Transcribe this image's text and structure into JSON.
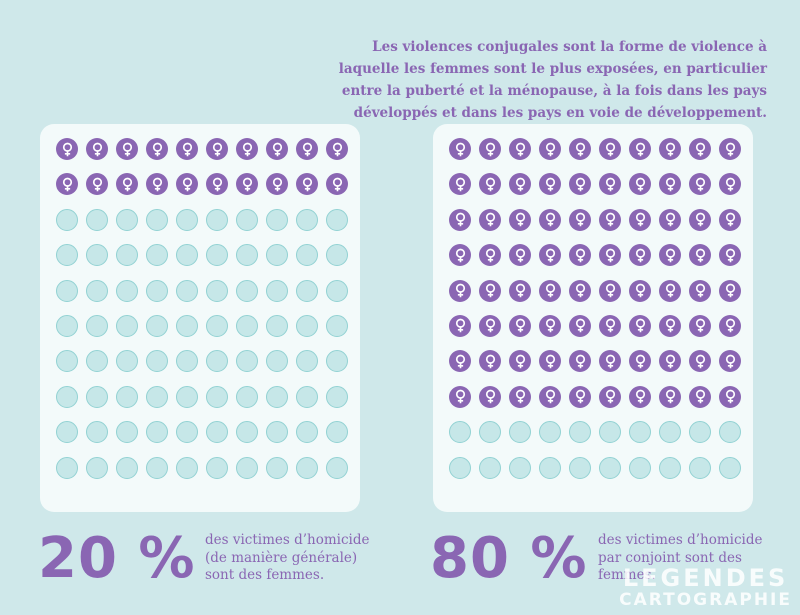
{
  "intro_text": "Les violences conjugales sont la forme de violence à laquelle les femmes sont le plus exposées, en particulier entre la puberté et la ménopause, à la fois dans les pays développés et dans les pays en voie de développement.",
  "colors": {
    "filled": "#8a66b3",
    "empty": "#c6e7e8",
    "background": "#cfe8ea"
  },
  "icon": "female-symbol-icon",
  "chart_data": [
    {
      "type": "waffle",
      "total_units": 100,
      "filled_units": 20,
      "value_label": "20 %",
      "caption": "des victimes d’homicide (de manière générale) sont des femmes."
    },
    {
      "type": "waffle",
      "total_units": 100,
      "filled_units": 80,
      "value_label": "80 %",
      "caption": "des victimes d’homicide par conjoint sont des femmes."
    }
  ],
  "logo": {
    "line1": "LEGENDES",
    "line2": "CARTOGRAPHIE"
  }
}
